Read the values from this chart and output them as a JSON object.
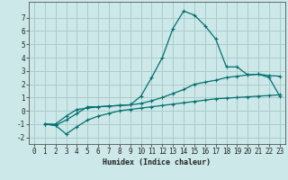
{
  "xlabel": "Humidex (Indice chaleur)",
  "bg_color": "#cce8e8",
  "grid_color": "#aacccc",
  "line_color": "#007070",
  "xlim": [
    -0.5,
    23.5
  ],
  "ylim": [
    -2.5,
    8.2
  ],
  "xticks": [
    0,
    1,
    2,
    3,
    4,
    5,
    6,
    7,
    8,
    9,
    10,
    11,
    12,
    13,
    14,
    15,
    16,
    17,
    18,
    19,
    20,
    21,
    22,
    23
  ],
  "yticks": [
    -2,
    -1,
    0,
    1,
    2,
    3,
    4,
    5,
    6,
    7
  ],
  "curve1_x": [
    1,
    2,
    3,
    4,
    5,
    6,
    7,
    8,
    9,
    10,
    11,
    12,
    13,
    14,
    15,
    16,
    17,
    18,
    19,
    20,
    21,
    22,
    23
  ],
  "curve1_y": [
    -1.0,
    -1.1,
    -0.7,
    -0.2,
    0.3,
    0.3,
    0.35,
    0.4,
    0.45,
    1.1,
    2.5,
    4.0,
    6.2,
    7.5,
    7.2,
    6.4,
    5.4,
    3.3,
    3.3,
    2.7,
    2.75,
    2.5,
    1.1
  ],
  "curve2_x": [
    1,
    2,
    3,
    4,
    5,
    6,
    7,
    8,
    9,
    10,
    11,
    12,
    13,
    14,
    15,
    16,
    17,
    18,
    19,
    20,
    21,
    22,
    23
  ],
  "curve2_y": [
    -1.0,
    -1.0,
    -0.4,
    0.1,
    0.2,
    0.3,
    0.35,
    0.4,
    0.45,
    0.55,
    0.75,
    1.0,
    1.3,
    1.6,
    2.0,
    2.15,
    2.3,
    2.5,
    2.6,
    2.7,
    2.75,
    2.65,
    2.6
  ],
  "curve3_x": [
    1,
    2,
    3,
    4,
    5,
    6,
    7,
    8,
    9,
    10,
    11,
    12,
    13,
    14,
    15,
    16,
    17,
    18,
    19,
    20,
    21,
    22,
    23
  ],
  "curve3_y": [
    -1.0,
    -1.1,
    -1.75,
    -1.2,
    -0.7,
    -0.4,
    -0.2,
    0.0,
    0.1,
    0.2,
    0.3,
    0.4,
    0.5,
    0.6,
    0.7,
    0.8,
    0.9,
    0.95,
    1.0,
    1.05,
    1.1,
    1.15,
    1.2
  ],
  "xlabel_fontsize": 6,
  "tick_fontsize": 5.5,
  "linewidth": 0.9,
  "markersize": 3.0
}
